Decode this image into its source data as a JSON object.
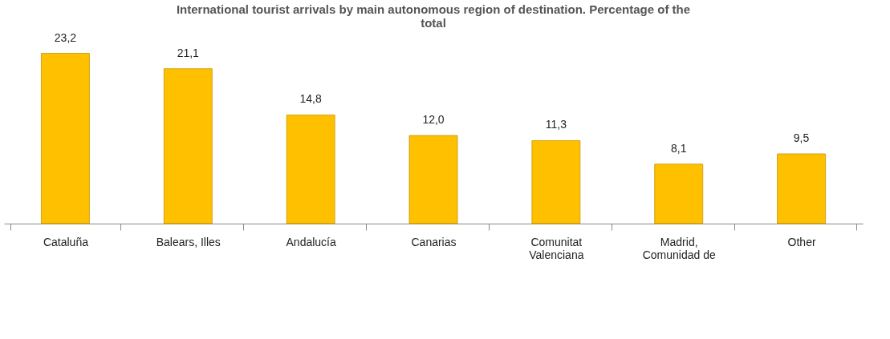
{
  "chart_data": {
    "type": "bar",
    "title": "International tourist arrivals by main autonomous region of destination. Percentage of the total",
    "categories": [
      "Cataluña",
      "Balears, Illes",
      "Andalucía",
      "Canarias",
      "Comunitat Valenciana",
      "Madrid, Comunidad de",
      "Other"
    ],
    "values": [
      23.2,
      21.1,
      14.8,
      12.0,
      11.3,
      8.1,
      9.5
    ],
    "value_labels": [
      "23,2",
      "21,1",
      "14,8",
      "12,0",
      "11,3",
      "8,1",
      "9,5"
    ],
    "color": "#ffc000"
  }
}
